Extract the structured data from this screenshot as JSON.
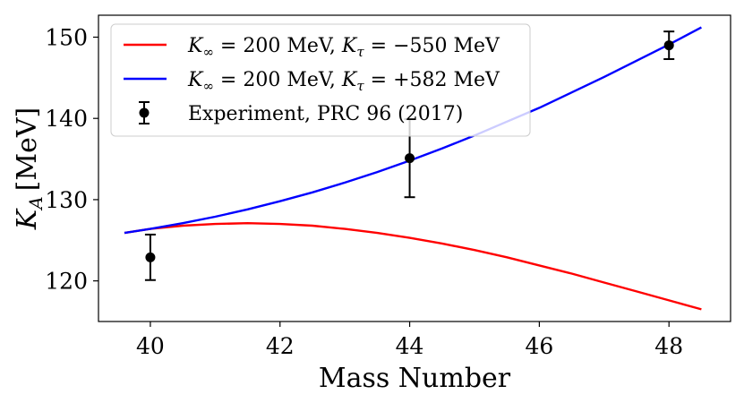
{
  "chart_data": {
    "type": "line",
    "title": "",
    "xlabel": "Mass Number",
    "ylabel": "K_A [MeV]",
    "ylabel_parts": {
      "symbol": "K",
      "sub": "A",
      "unit": "[MeV]"
    },
    "xlim": [
      39.2,
      48.95
    ],
    "ylim": [
      115,
      152.7
    ],
    "x_ticks": [
      40,
      42,
      44,
      46,
      48
    ],
    "y_ticks": [
      120,
      130,
      140,
      150
    ],
    "grid": false,
    "legend_position": "top-left",
    "series": [
      {
        "name": "K∞ = 200 MeV, Kτ = −550 MeV",
        "legend_parts": {
          "k1": "K",
          "s1": "∞",
          "v1": " = 200 MeV, ",
          "k2": "K",
          "s2": "τ",
          "v2": " = −550 MeV"
        },
        "color": "#ff0000",
        "kind": "line",
        "x": [
          39.6,
          40.0,
          40.5,
          41.0,
          41.5,
          42.0,
          42.5,
          43.0,
          43.5,
          44.0,
          44.5,
          45.0,
          45.5,
          46.0,
          46.5,
          47.0,
          47.5,
          48.0,
          48.5
        ],
        "y": [
          125.9,
          126.4,
          126.8,
          127.0,
          127.1,
          127.0,
          126.8,
          126.4,
          125.9,
          125.3,
          124.6,
          123.8,
          122.9,
          121.9,
          120.9,
          119.8,
          118.7,
          117.6,
          116.5
        ]
      },
      {
        "name": "K∞ = 200 MeV, Kτ = +582 MeV",
        "legend_parts": {
          "k1": "K",
          "s1": "∞",
          "v1": " = 200 MeV, ",
          "k2": "K",
          "s2": "τ",
          "v2": " = +582 MeV"
        },
        "color": "#0000ff",
        "kind": "line",
        "x": [
          39.6,
          40.0,
          40.5,
          41.0,
          41.5,
          42.0,
          42.5,
          43.0,
          43.5,
          44.0,
          44.5,
          45.0,
          45.5,
          46.0,
          46.5,
          47.0,
          47.5,
          48.0,
          48.5
        ],
        "y": [
          125.9,
          126.4,
          127.1,
          127.9,
          128.8,
          129.8,
          130.9,
          132.1,
          133.4,
          134.8,
          136.3,
          137.9,
          139.6,
          141.3,
          143.2,
          145.1,
          147.1,
          149.1,
          151.2
        ]
      },
      {
        "name": "Experiment, PRC 96 (2017)",
        "color": "#000000",
        "kind": "errorbar",
        "x": [
          40,
          44,
          48
        ],
        "y": [
          122.9,
          135.1,
          149.0
        ],
        "yerr": [
          2.8,
          4.8,
          1.7
        ]
      }
    ]
  }
}
